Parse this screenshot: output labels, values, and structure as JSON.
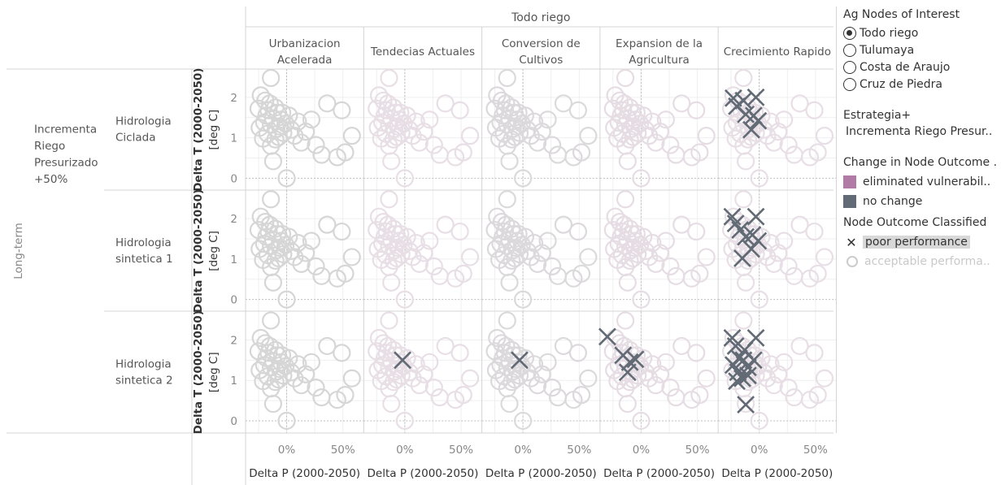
{
  "chart_data": {
    "type": "scatter",
    "facet_top_header": "Todo riego",
    "scenarios": [
      "Urbanizacion\nAcelerada",
      "Tendecias Actuales",
      "Conversion de\nCultivos",
      "Expansion de la\nAgricultura",
      "Crecimiento Rapido"
    ],
    "horizon_label": "Long-term",
    "strategy_row_label": "Incrementa\nRiego\nPresurizado\n+50%",
    "hydrologies": [
      "Hidrologia\nCiclada",
      "Hidrologia\nsintetica 1",
      "Hidrologia\nsintetica 2"
    ],
    "xlabel": "Delta P (2000-2050)",
    "ylabel": "Delta T (2000-2050)\n[deg C]",
    "x_ticks": [
      "0%",
      "50%"
    ],
    "x_tick_values": [
      0,
      50
    ],
    "y_ticks": [
      "0",
      "1",
      "2"
    ],
    "y_tick_values": [
      0,
      1,
      2
    ],
    "xlim": [
      -30,
      62
    ],
    "ylim": [
      -0.2,
      2.6
    ],
    "grid": true,
    "base_points": [
      {
        "x": -14,
        "y": 2.48
      },
      {
        "x": -23,
        "y": 2.05
      },
      {
        "x": -19,
        "y": 1.92
      },
      {
        "x": -25,
        "y": 1.72
      },
      {
        "x": -18,
        "y": 1.55
      },
      {
        "x": -15,
        "y": 1.85
      },
      {
        "x": -10,
        "y": 1.75
      },
      {
        "x": -8,
        "y": 1.62
      },
      {
        "x": -5,
        "y": 1.45
      },
      {
        "x": -20,
        "y": 1.38
      },
      {
        "x": -24,
        "y": 1.25
      },
      {
        "x": -14,
        "y": 1.32
      },
      {
        "x": -12,
        "y": 1.48
      },
      {
        "x": -6,
        "y": 1.28
      },
      {
        "x": -3,
        "y": 1.12
      },
      {
        "x": -17,
        "y": 1.1
      },
      {
        "x": -21,
        "y": 0.98
      },
      {
        "x": -14,
        "y": 0.8
      },
      {
        "x": -10,
        "y": 0.96
      },
      {
        "x": -1,
        "y": 1.35
      },
      {
        "x": 2,
        "y": 1.55
      },
      {
        "x": 4,
        "y": 1.2
      },
      {
        "x": 7,
        "y": 1.05
      },
      {
        "x": 10,
        "y": 1.4
      },
      {
        "x": 13,
        "y": 0.88
      },
      {
        "x": 17,
        "y": 1.15
      },
      {
        "x": 22,
        "y": 1.45
      },
      {
        "x": 26,
        "y": 0.82
      },
      {
        "x": 36,
        "y": 1.85
      },
      {
        "x": 31,
        "y": 0.58
      },
      {
        "x": 45,
        "y": 0.52
      },
      {
        "x": 49,
        "y": 1.68
      },
      {
        "x": 52,
        "y": 0.64
      },
      {
        "x": 58,
        "y": 1.05
      },
      {
        "x": -12,
        "y": 0.42
      },
      {
        "x": 0,
        "y": 0.0
      },
      {
        "x": -4,
        "y": 1.62
      },
      {
        "x": -9,
        "y": 1.22
      },
      {
        "x": -16,
        "y": 1.68
      },
      {
        "x": -7,
        "y": 1.02
      }
    ],
    "series": [
      {
        "name": "no change",
        "color": "#616a75"
      },
      {
        "name": "eliminated vulnerabil..",
        "color": "#b27ba6"
      }
    ],
    "panel_tints": [
      [
        "#d6d6d6",
        "#e8dfe6",
        "#dcd9dc",
        "#e6dde4",
        "#e8dfe6"
      ],
      [
        "#d6d6d6",
        "#e8dfe6",
        "#dcd9dc",
        "#e6dde4",
        "#e8dfe6"
      ],
      [
        "#d6d6d6",
        "#e8dfe6",
        "#dcd9dc",
        "#e6dde4",
        "#e8dfe6"
      ]
    ],
    "poor_performance_points": [
      [
        [],
        [],
        [],
        [],
        [
          {
            "x": -23,
            "y": 1.98
          },
          {
            "x": -20,
            "y": 1.78
          },
          {
            "x": -14,
            "y": 1.92
          },
          {
            "x": -12,
            "y": 1.58
          },
          {
            "x": -3,
            "y": 2.0
          },
          {
            "x": -5,
            "y": 1.55
          },
          {
            "x": -1,
            "y": 1.42
          },
          {
            "x": -7,
            "y": 1.2
          }
        ]
      ],
      [
        [],
        [],
        [],
        [],
        [
          {
            "x": -24,
            "y": 2.05
          },
          {
            "x": -21,
            "y": 1.88
          },
          {
            "x": -17,
            "y": 1.72
          },
          {
            "x": -12,
            "y": 1.55
          },
          {
            "x": -3,
            "y": 2.05
          },
          {
            "x": -6,
            "y": 1.6
          },
          {
            "x": -1,
            "y": 1.45
          },
          {
            "x": -7,
            "y": 1.25
          },
          {
            "x": -15,
            "y": 1.02
          }
        ]
      ],
      [
        [],
        [
          {
            "x": -2,
            "y": 1.5
          }
        ],
        [
          {
            "x": -3,
            "y": 1.5
          }
        ],
        [
          {
            "x": -30,
            "y": 2.08
          },
          {
            "x": -16,
            "y": 1.62
          },
          {
            "x": -10,
            "y": 1.45
          },
          {
            "x": -5,
            "y": 1.52
          },
          {
            "x": -12,
            "y": 1.2
          }
        ],
        [
          {
            "x": -24,
            "y": 2.05
          },
          {
            "x": -21,
            "y": 1.85
          },
          {
            "x": -18,
            "y": 1.55
          },
          {
            "x": -13,
            "y": 1.75
          },
          {
            "x": -23,
            "y": 1.38
          },
          {
            "x": -19,
            "y": 1.2
          },
          {
            "x": -14,
            "y": 1.5
          },
          {
            "x": -10,
            "y": 1.32
          },
          {
            "x": -3,
            "y": 2.05
          },
          {
            "x": -5,
            "y": 1.5
          },
          {
            "x": -15,
            "y": 1.05
          },
          {
            "x": -20,
            "y": 0.98
          },
          {
            "x": -10,
            "y": 1.12
          },
          {
            "x": -12,
            "y": 0.4
          }
        ]
      ]
    ]
  },
  "sidebar": {
    "ag_nodes_title": "Ag Nodes of Interest",
    "ag_nodes": [
      {
        "label": "Todo riego",
        "selected": true
      },
      {
        "label": "Tulumaya",
        "selected": false
      },
      {
        "label": "Costa de Araujo",
        "selected": false
      },
      {
        "label": "Cruz de Piedra",
        "selected": false
      }
    ],
    "strategy_title": "Estrategia+",
    "strategy_value": "Incrementa Riego Presur..",
    "change_title": "Change in Node Outcome ..",
    "change_items": [
      {
        "label": "eliminated vulnerabil..",
        "color": "#b27ba6"
      },
      {
        "label": "no change",
        "color": "#616a75"
      }
    ],
    "outcome_title": "Node Outcome Classified",
    "outcome_poor": "poor performance",
    "outcome_acceptable": "acceptable performa.."
  }
}
